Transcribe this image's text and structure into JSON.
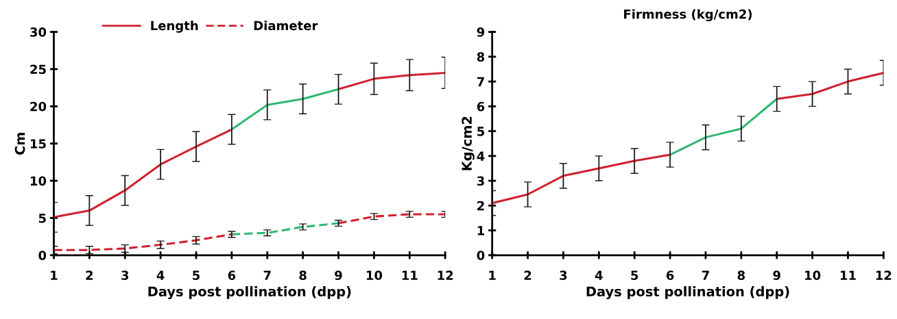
{
  "chart_data": [
    {
      "type": "line",
      "xlabel": "Days post pollination (dpp)",
      "ylabel": "Cm",
      "categories": [
        "1",
        "2",
        "3",
        "4",
        "5",
        "6",
        "7",
        "8",
        "9",
        "10",
        "11",
        "12"
      ],
      "ylim": [
        0,
        30
      ],
      "yticks": [
        0,
        5,
        10,
        15,
        20,
        25,
        30
      ],
      "grid": false,
      "legend": "top",
      "marker": "none",
      "series": [
        {
          "name": "Length",
          "color": "#d0202e",
          "line_style": "solid",
          "values": [
            5.1,
            6.0,
            8.7,
            12.2,
            14.6,
            16.9,
            null,
            null,
            22.3,
            23.7,
            24.2,
            24.5
          ],
          "errors": [
            2,
            2,
            2,
            2,
            2,
            2,
            null,
            null,
            2,
            2.1,
            2.1,
            2.1
          ]
        },
        {
          "color": "#2eb872",
          "line_style": "solid",
          "values": [
            null,
            null,
            null,
            null,
            null,
            16.9,
            20.2,
            21.0,
            22.3,
            null,
            null,
            null
          ],
          "errors": [
            null,
            null,
            null,
            null,
            null,
            null,
            2,
            2,
            null,
            null,
            null,
            null
          ]
        },
        {
          "name": "Diameter",
          "color": "#d0202e",
          "line_style": "dashed",
          "values": [
            0.7,
            0.7,
            0.9,
            1.4,
            2.0,
            2.8,
            null,
            null,
            4.3,
            5.2,
            5.5,
            5.5
          ],
          "errors": [
            0.5,
            0.5,
            0.5,
            0.5,
            0.5,
            0.4,
            null,
            null,
            0.4,
            0.4,
            0.4,
            0.4
          ]
        },
        {
          "color": "#2eb872",
          "line_style": "dashed",
          "values": [
            null,
            null,
            null,
            null,
            null,
            2.8,
            3.0,
            3.8,
            4.3,
            null,
            null,
            null
          ],
          "errors": [
            null,
            null,
            null,
            null,
            null,
            null,
            0.4,
            0.4,
            null,
            null,
            null,
            null
          ]
        }
      ]
    },
    {
      "type": "line",
      "title": "Firmness (kg/cm2)",
      "xlabel": "Days post pollination (dpp)",
      "ylabel": "Kg/cm2",
      "categories": [
        "1",
        "2",
        "3",
        "4",
        "5",
        "6",
        "7",
        "8",
        "9",
        "10",
        "11",
        "12"
      ],
      "ylim": [
        0,
        9
      ],
      "yticks": [
        0,
        1,
        2,
        3,
        4,
        5,
        6,
        7,
        8,
        9
      ],
      "grid": false,
      "legend": false,
      "marker": "none",
      "series": [
        {
          "color": "#d0202e",
          "line_style": "solid",
          "values": [
            2.1,
            2.45,
            3.2,
            3.5,
            3.8,
            4.05,
            null,
            null,
            6.3,
            6.5,
            7.0,
            7.35
          ],
          "errors": [
            0.5,
            0.5,
            0.5,
            0.5,
            0.5,
            0.5,
            null,
            null,
            0.5,
            0.5,
            0.5,
            0.5
          ]
        },
        {
          "color": "#2eb872",
          "line_style": "solid",
          "values": [
            null,
            null,
            null,
            null,
            null,
            4.05,
            4.75,
            5.1,
            6.3,
            null,
            null,
            null
          ],
          "errors": [
            null,
            null,
            null,
            null,
            null,
            null,
            0.5,
            0.5,
            null,
            null,
            null,
            null
          ]
        }
      ]
    }
  ]
}
